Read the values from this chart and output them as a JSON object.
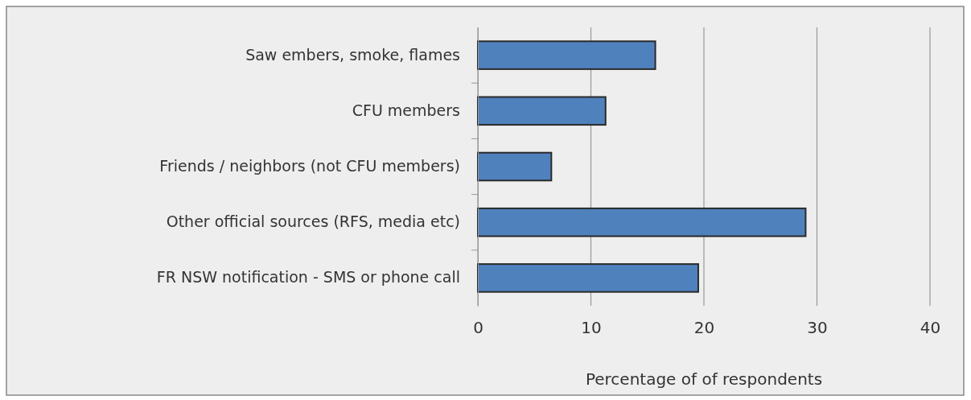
{
  "chart_data": {
    "type": "bar",
    "orientation": "horizontal",
    "categories": [
      "Saw embers, smoke, flames",
      "CFU members",
      "Friends / neighbors (not CFU members)",
      "Other official sources (RFS, media etc)",
      "FR NSW notification - SMS or phone call"
    ],
    "values": [
      15.7,
      11.3,
      6.5,
      29.0,
      19.5
    ],
    "color": "#4f81bd",
    "xlabel": "Percentage of of respondents",
    "xlim": [
      0,
      40
    ],
    "xticks": [
      0,
      10,
      20,
      30,
      40
    ],
    "grid": "x"
  }
}
